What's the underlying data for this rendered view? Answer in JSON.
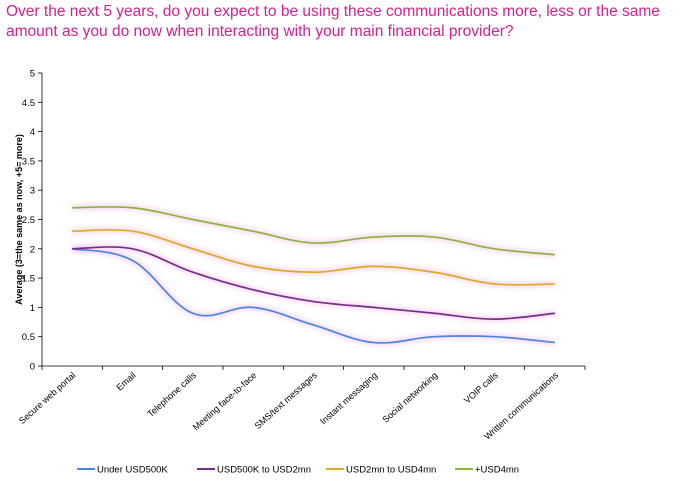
{
  "title": "Over the next 5 years, do you expect to be using these communications more, less or the same amount as you do now when interacting with your main financial provider?",
  "colors": {
    "title": "#d6218f",
    "under_500k": "#4d86de",
    "500k_2mn": "#7a2c8c",
    "2mn_4mn": "#e0a91f",
    "plus_4mn": "#8bb43a",
    "glow": "#f2c6ef"
  },
  "chart_data": {
    "type": "line",
    "ylabel": "Average (3=the same as now, +5= more)",
    "xlabel": "",
    "ylim": [
      0,
      5
    ],
    "yticks": [
      "0",
      "0.5",
      "1",
      "1.5",
      "2",
      "2.5",
      "3",
      "3.5",
      "4",
      "4.5",
      "5"
    ],
    "grid": false,
    "legend": "bottom",
    "categories": [
      "Secure web portal",
      "Email",
      "Telephone calls",
      "Meeting face-to-face",
      "SMS/text messages",
      "Instant messaging",
      "Social networking",
      "VOIP calls",
      "Written communications"
    ],
    "series": [
      {
        "name": "Under USD500K",
        "values": [
          2.0,
          1.8,
          0.9,
          1.0,
          0.7,
          0.4,
          0.5,
          0.5,
          0.4
        ]
      },
      {
        "name": "USD500K to USD2mn",
        "values": [
          2.0,
          2.0,
          1.6,
          1.3,
          1.1,
          1.0,
          0.9,
          0.8,
          0.9
        ]
      },
      {
        "name": "USD2mn to USD4mn",
        "values": [
          2.3,
          2.3,
          2.0,
          1.7,
          1.6,
          1.7,
          1.6,
          1.4,
          1.4
        ]
      },
      {
        "name": "+USD4mn",
        "values": [
          2.7,
          2.7,
          2.5,
          2.3,
          2.1,
          2.2,
          2.2,
          2.0,
          1.9
        ]
      }
    ]
  }
}
